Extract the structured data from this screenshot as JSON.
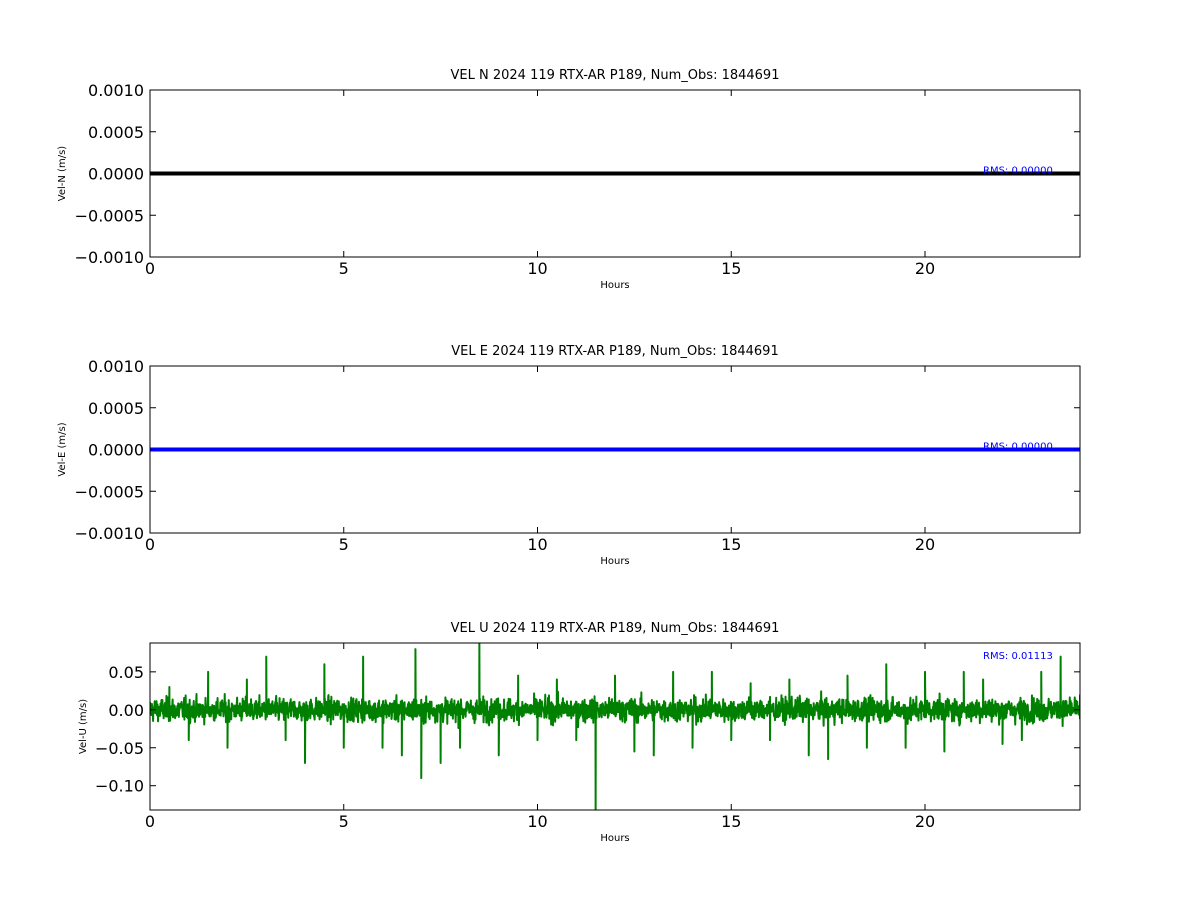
{
  "chart_data": [
    {
      "type": "line",
      "title": "VEL N 2024 119 RTX-AR  P189, Num_Obs: 1844691",
      "xlabel": "Hours",
      "ylabel": "Vel-N (m/s)",
      "xlim": [
        0,
        24
      ],
      "ylim": [
        -0.001,
        0.001
      ],
      "xticks": [
        0,
        5,
        10,
        15,
        20
      ],
      "xtick_labels": [
        "0",
        "5",
        "10",
        "15",
        "20"
      ],
      "yticks": [
        0.001,
        0.0005,
        0.0,
        -0.0005,
        -0.001
      ],
      "ytick_labels": [
        "0.0010",
        "0.0005",
        "0.0000",
        "−0.0005",
        "−0.0010"
      ],
      "annotation": "RMS:  0.00000",
      "color": "#000000",
      "grid": false,
      "series": [
        {
          "x": [
            0,
            24
          ],
          "values": [
            0.0,
            0.0
          ]
        }
      ]
    },
    {
      "type": "line",
      "title": "VEL E 2024 119 RTX-AR  P189, Num_Obs: 1844691",
      "xlabel": "Hours",
      "ylabel": "Vel-E (m/s)",
      "xlim": [
        0,
        24
      ],
      "ylim": [
        -0.001,
        0.001
      ],
      "xticks": [
        0,
        5,
        10,
        15,
        20
      ],
      "xtick_labels": [
        "0",
        "5",
        "10",
        "15",
        "20"
      ],
      "yticks": [
        0.001,
        0.0005,
        0.0,
        -0.0005,
        -0.001
      ],
      "ytick_labels": [
        "0.0010",
        "0.0005",
        "0.0000",
        "−0.0005",
        "−0.0010"
      ],
      "annotation": "RMS:  0.00000",
      "color": "#0000ff",
      "grid": false,
      "series": [
        {
          "x": [
            0,
            24
          ],
          "values": [
            0.0,
            0.0
          ]
        }
      ]
    },
    {
      "type": "line",
      "title": "VEL U 2024 119 RTX-AR  P189, Num_Obs: 1844691",
      "xlabel": "Hours",
      "ylabel": "Vel-U (m/s)",
      "xlim": [
        0,
        24
      ],
      "ylim": [
        -0.132,
        0.088
      ],
      "xticks": [
        0,
        5,
        10,
        15,
        20
      ],
      "xtick_labels": [
        "0",
        "5",
        "10",
        "15",
        "20"
      ],
      "yticks": [
        0.05,
        0.0,
        -0.05,
        -0.1
      ],
      "ytick_labels": [
        "0.05",
        "0.00",
        "−0.05",
        "−0.10"
      ],
      "annotation": "RMS:  0.01113",
      "color": "#008000",
      "grid": false,
      "series": [
        {
          "x": [
            0,
            0.5,
            1,
            1.5,
            2,
            2.5,
            3,
            3.5,
            4,
            4.5,
            5,
            5.5,
            6,
            6.5,
            6.85,
            7,
            7.5,
            8,
            8.5,
            9,
            9.5,
            10,
            10.5,
            11,
            11.5,
            12,
            12.5,
            13,
            13.5,
            14,
            14.5,
            15,
            15.5,
            16,
            16.5,
            17,
            17.5,
            18,
            18.5,
            19,
            19.5,
            20,
            20.5,
            21,
            21.5,
            22,
            22.5,
            23,
            23.5,
            24
          ],
          "values": [
            0.0,
            0.03,
            -0.04,
            0.05,
            -0.05,
            0.04,
            0.07,
            -0.04,
            -0.07,
            0.06,
            -0.05,
            0.07,
            -0.05,
            -0.06,
            0.08,
            -0.09,
            -0.07,
            -0.05,
            0.088,
            -0.06,
            0.045,
            -0.04,
            0.04,
            -0.04,
            -0.132,
            0.045,
            -0.055,
            -0.06,
            0.05,
            -0.05,
            0.05,
            -0.04,
            0.035,
            -0.04,
            0.04,
            -0.06,
            -0.065,
            0.045,
            -0.05,
            0.06,
            -0.05,
            0.05,
            -0.055,
            0.05,
            0.04,
            -0.045,
            -0.04,
            0.05,
            0.07,
            0.02
          ]
        }
      ]
    }
  ]
}
